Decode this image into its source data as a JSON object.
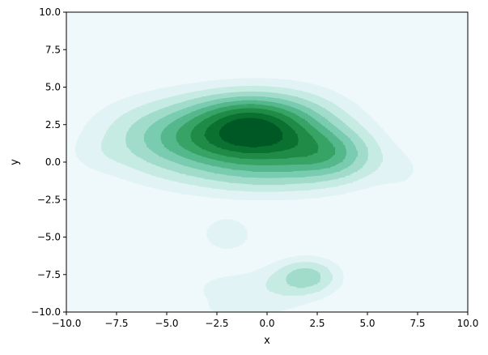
{
  "chart_data": {
    "type": "kde_density_contour",
    "title": "",
    "xlabel": "x",
    "ylabel": "y",
    "xlim": [
      -10.0,
      10.0
    ],
    "ylim": [
      -10.0,
      10.0
    ],
    "x_ticks": [
      -10.0,
      -7.5,
      -5.0,
      -2.5,
      0.0,
      2.5,
      5.0,
      7.5,
      10.0
    ],
    "x_tick_labels": [
      "−10.0",
      "−7.5",
      "−5.0",
      "−2.5",
      "0.0",
      "2.5",
      "5.0",
      "7.5",
      "10.0"
    ],
    "y_ticks": [
      -10.0,
      -7.5,
      -5.0,
      -2.5,
      0.0,
      2.5,
      5.0,
      7.5,
      10.0
    ],
    "y_tick_labels": [
      "−10.0",
      "−7.5",
      "−5.0",
      "−2.5",
      "0.0",
      "2.5",
      "5.0",
      "7.5",
      "10.0"
    ],
    "grid": false,
    "legend": false,
    "colormap": "BuGn",
    "background_color": "#eff8fb",
    "level_colors": [
      "#e1f3f4",
      "#c6ebe3",
      "#a1dccb",
      "#79ccb0",
      "#54b88c",
      "#37a365",
      "#1f8b46",
      "#0a7131",
      "#005925"
    ],
    "density_components": [
      {
        "x": -4.5,
        "y": 1.6,
        "sx": 2.4,
        "sy": 1.6,
        "w": 0.6
      },
      {
        "x": -1.5,
        "y": 1.8,
        "sx": 2.0,
        "sy": 1.5,
        "w": 0.8
      },
      {
        "x": 1.0,
        "y": 1.8,
        "sx": 2.0,
        "sy": 1.6,
        "w": 0.8
      },
      {
        "x": 3.3,
        "y": 0.5,
        "sx": 1.5,
        "sy": 1.1,
        "w": 0.5
      },
      {
        "x": -1.0,
        "y": 3.4,
        "sx": 1.8,
        "sy": 0.9,
        "w": 0.3
      },
      {
        "x": 0.0,
        "y": -0.8,
        "sx": 2.8,
        "sy": 1.0,
        "w": 0.25
      },
      {
        "x": -8.5,
        "y": 0.5,
        "sx": 1.0,
        "sy": 0.8,
        "w": 0.06
      },
      {
        "x": 6.8,
        "y": -0.6,
        "sx": 1.0,
        "sy": 1.1,
        "w": 0.08
      },
      {
        "x": -2.0,
        "y": -4.8,
        "sx": 0.85,
        "sy": 0.8,
        "w": 0.18
      },
      {
        "x": 2.0,
        "y": -7.6,
        "sx": 1.0,
        "sy": 0.75,
        "w": 0.4
      },
      {
        "x": 0.5,
        "y": -8.3,
        "sx": 1.5,
        "sy": 0.9,
        "w": 0.18
      },
      {
        "x": -2.2,
        "y": -8.4,
        "sx": 1.0,
        "sy": 0.6,
        "w": 0.12
      },
      {
        "x": -1.5,
        "y": -9.8,
        "sx": 2.0,
        "sy": 0.6,
        "w": 0.1
      }
    ]
  }
}
